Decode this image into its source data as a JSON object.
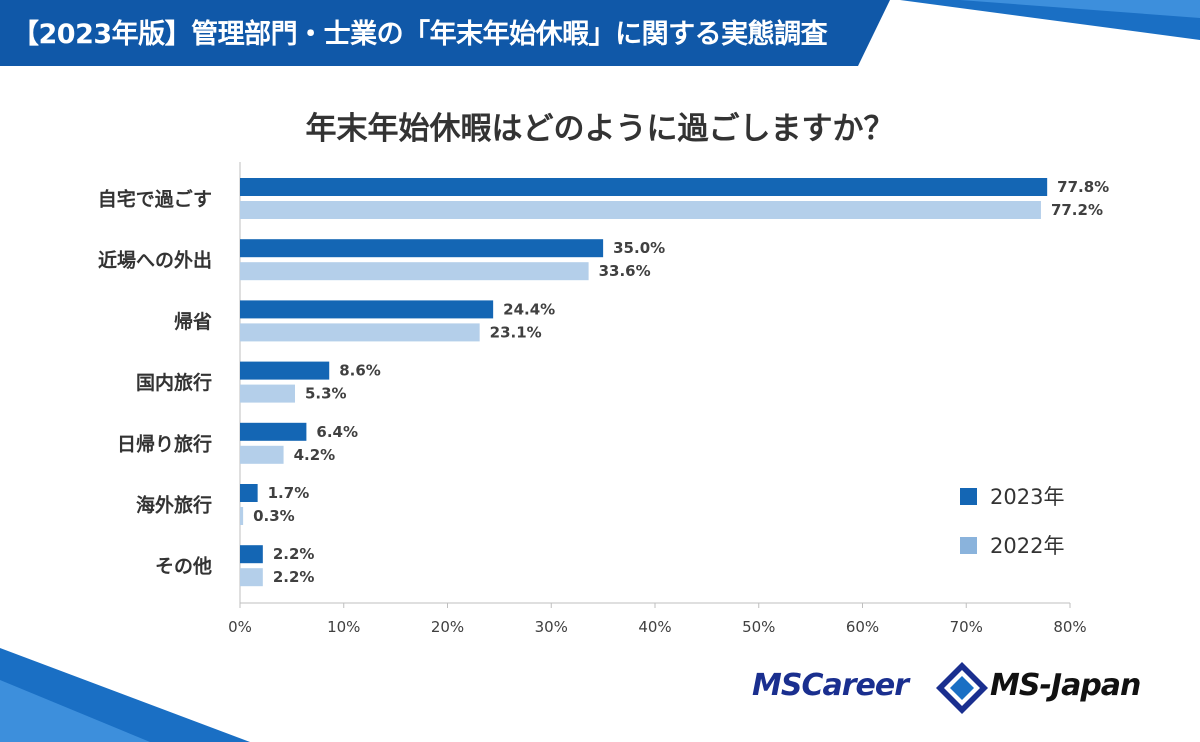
{
  "header": {
    "title": "【2023年版】管理部門・士業の「年末年始休暇」に関する実態調査",
    "color": "#1058a8"
  },
  "logos": {
    "left": "MSCareer",
    "right": "MS-Japan"
  },
  "chart_data": {
    "type": "bar",
    "orientation": "horizontal",
    "title": "年末年始休暇はどのように過ごしますか？",
    "categories": [
      "自宅で過ごす",
      "近場への外出",
      "帰省",
      "国内旅行",
      "日帰り旅行",
      "海外旅行",
      "その他"
    ],
    "series": [
      {
        "name": "2023年",
        "color": "#1466b4",
        "values": [
          77.8,
          35.0,
          24.4,
          8.6,
          6.4,
          1.7,
          2.2
        ]
      },
      {
        "name": "2022年",
        "color": "#b4cfea",
        "values": [
          77.2,
          33.6,
          23.1,
          5.3,
          4.2,
          0.3,
          2.2
        ]
      }
    ],
    "xlim": [
      0,
      80
    ],
    "xticks": [
      0,
      10,
      20,
      30,
      40,
      50,
      60,
      70,
      80
    ],
    "tick_suffix": "%",
    "value_suffix": "%",
    "legend": "right",
    "grid": false
  }
}
